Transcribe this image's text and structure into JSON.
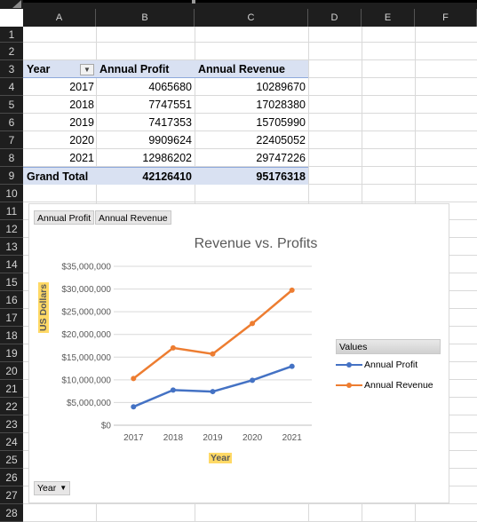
{
  "columns": [
    "A",
    "B",
    "C",
    "D",
    "E",
    "F"
  ],
  "rows": [
    "1",
    "2",
    "3",
    "4",
    "5",
    "6",
    "7",
    "8",
    "9",
    "10",
    "11",
    "12",
    "13",
    "14",
    "15",
    "16",
    "17",
    "18",
    "19",
    "20",
    "21",
    "22",
    "23",
    "24",
    "25",
    "26",
    "27",
    "28"
  ],
  "pivot": {
    "headers": [
      "Year",
      "Annual Profit",
      "Annual Revenue"
    ],
    "rows": [
      [
        "2017",
        "4065680",
        "10289670"
      ],
      [
        "2018",
        "7747551",
        "17028380"
      ],
      [
        "2019",
        "7417353",
        "15705990"
      ],
      [
        "2020",
        "9909624",
        "22405052"
      ],
      [
        "2021",
        "12986202",
        "29747226"
      ]
    ],
    "total": [
      "Grand Total",
      "42126410",
      "95176318"
    ],
    "filter_icon": "dropdown-filter-icon"
  },
  "chart": {
    "field_buttons": [
      "Annual Profit",
      "Annual Revenue"
    ],
    "axis_field_button": "Year",
    "legend_header": "Values",
    "colors": {
      "profit": "#4472c4",
      "revenue": "#ed7d31",
      "highlight": "#ffd966"
    }
  },
  "chart_data": {
    "type": "line",
    "title": "Revenue vs. Profits",
    "xlabel": "Year",
    "ylabel": "US Dollars",
    "categories": [
      "2017",
      "2018",
      "2019",
      "2020",
      "2021"
    ],
    "series": [
      {
        "name": "Annual Profit",
        "values": [
          4065680,
          7747551,
          7417353,
          9909624,
          12986202
        ]
      },
      {
        "name": "Annual Revenue",
        "values": [
          10289670,
          17028380,
          15705990,
          22405052,
          29747226
        ]
      }
    ],
    "ylim": [
      0,
      35000000
    ],
    "yticks": [
      "$0",
      "$5,000,000",
      "$10,000,000",
      "$15,000,000",
      "$20,000,000",
      "$25,000,000",
      "$30,000,000",
      "$35,000,000"
    ],
    "grid": true,
    "legend": "right"
  }
}
